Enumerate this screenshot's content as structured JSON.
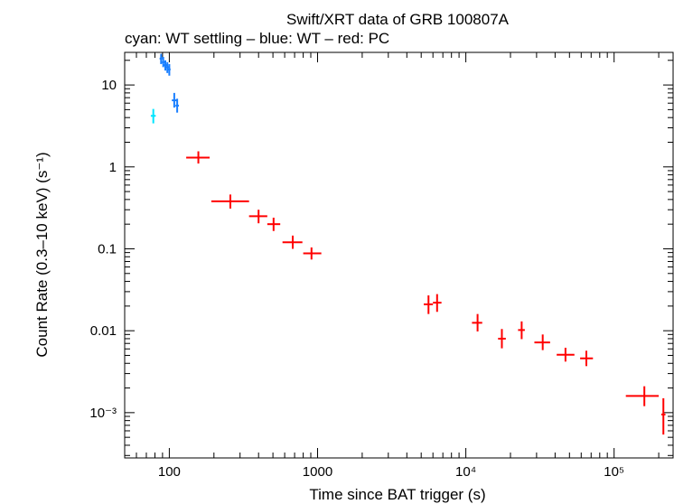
{
  "chart_data": {
    "type": "scatter",
    "title": "Swift/XRT data of GRB 100807A",
    "subtitle": "cyan: WT settling – blue: WT – red: PC",
    "xlabel": "Time since BAT trigger (s)",
    "ylabel": "Count Rate (0.3–10 keV) (s⁻¹)",
    "xscale": "log",
    "yscale": "log",
    "xlim": [
      50,
      250000
    ],
    "ylim": [
      0.00028,
      25
    ],
    "x_ticks": [
      {
        "value": 100,
        "label": "100"
      },
      {
        "value": 1000,
        "label": "1000"
      },
      {
        "value": 10000,
        "label": "10⁴"
      },
      {
        "value": 100000,
        "label": "10⁵"
      }
    ],
    "y_ticks": [
      {
        "value": 10,
        "label": "10"
      },
      {
        "value": 1,
        "label": "1"
      },
      {
        "value": 0.1,
        "label": "0.1"
      },
      {
        "value": 0.01,
        "label": "0.01"
      },
      {
        "value": 0.001,
        "label": "10⁻³"
      }
    ],
    "series": [
      {
        "name": "WT settling",
        "color": "#00e5ff",
        "points": [
          {
            "x": 78,
            "xlo": 75,
            "xhi": 81,
            "y": 4.2,
            "ylo": 3.4,
            "yhi": 5.1
          }
        ]
      },
      {
        "name": "WT",
        "color": "#1a7fff",
        "points": [
          {
            "x": 88,
            "xlo": 86,
            "xhi": 90,
            "y": 21,
            "ylo": 18,
            "yhi": 24
          },
          {
            "x": 91,
            "xlo": 89,
            "xhi": 93,
            "y": 19,
            "ylo": 16.5,
            "yhi": 22
          },
          {
            "x": 94,
            "xlo": 92,
            "xhi": 96,
            "y": 17.5,
            "ylo": 15,
            "yhi": 20
          },
          {
            "x": 97,
            "xlo": 95,
            "xhi": 99,
            "y": 16.5,
            "ylo": 14,
            "yhi": 19
          },
          {
            "x": 100,
            "xlo": 98,
            "xhi": 102,
            "y": 15.5,
            "ylo": 13,
            "yhi": 18
          },
          {
            "x": 108,
            "xlo": 104,
            "xhi": 112,
            "y": 6.5,
            "ylo": 5.3,
            "yhi": 8
          },
          {
            "x": 113,
            "xlo": 110,
            "xhi": 116,
            "y": 5.6,
            "ylo": 4.6,
            "yhi": 6.8
          }
        ]
      },
      {
        "name": "PC",
        "color": "#ff0000",
        "points": [
          {
            "x": 157,
            "xlo": 130,
            "xhi": 187,
            "y": 1.3,
            "ylo": 1.1,
            "yhi": 1.55
          },
          {
            "x": 258,
            "xlo": 192,
            "xhi": 345,
            "y": 0.38,
            "ylo": 0.31,
            "yhi": 0.46
          },
          {
            "x": 400,
            "xlo": 345,
            "xhi": 458,
            "y": 0.25,
            "ylo": 0.205,
            "yhi": 0.3
          },
          {
            "x": 505,
            "xlo": 458,
            "xhi": 560,
            "y": 0.2,
            "ylo": 0.165,
            "yhi": 0.24
          },
          {
            "x": 680,
            "xlo": 580,
            "xhi": 790,
            "y": 0.12,
            "ylo": 0.1,
            "yhi": 0.145
          },
          {
            "x": 910,
            "xlo": 800,
            "xhi": 1060,
            "y": 0.088,
            "ylo": 0.074,
            "yhi": 0.104
          },
          {
            "x": 5600,
            "xlo": 5200,
            "xhi": 6000,
            "y": 0.021,
            "ylo": 0.016,
            "yhi": 0.027
          },
          {
            "x": 6400,
            "xlo": 6000,
            "xhi": 6850,
            "y": 0.022,
            "ylo": 0.017,
            "yhi": 0.028
          },
          {
            "x": 12000,
            "xlo": 11000,
            "xhi": 12900,
            "y": 0.0125,
            "ylo": 0.0098,
            "yhi": 0.016
          },
          {
            "x": 17500,
            "xlo": 16500,
            "xhi": 18600,
            "y": 0.008,
            "ylo": 0.0061,
            "yhi": 0.0105
          },
          {
            "x": 23800,
            "xlo": 22500,
            "xhi": 25000,
            "y": 0.0102,
            "ylo": 0.0079,
            "yhi": 0.013
          },
          {
            "x": 33000,
            "xlo": 29000,
            "xhi": 37000,
            "y": 0.0072,
            "ylo": 0.0058,
            "yhi": 0.009
          },
          {
            "x": 47000,
            "xlo": 41000,
            "xhi": 54000,
            "y": 0.0051,
            "ylo": 0.0042,
            "yhi": 0.0062
          },
          {
            "x": 65000,
            "xlo": 59000,
            "xhi": 72000,
            "y": 0.0046,
            "ylo": 0.0037,
            "yhi": 0.0057
          },
          {
            "x": 160000,
            "xlo": 120000,
            "xhi": 200000,
            "y": 0.0016,
            "ylo": 0.0012,
            "yhi": 0.0021
          },
          {
            "x": 215000,
            "xlo": 208000,
            "xhi": 222000,
            "y": 0.00095,
            "ylo": 0.00054,
            "yhi": 0.0015
          }
        ]
      }
    ]
  }
}
